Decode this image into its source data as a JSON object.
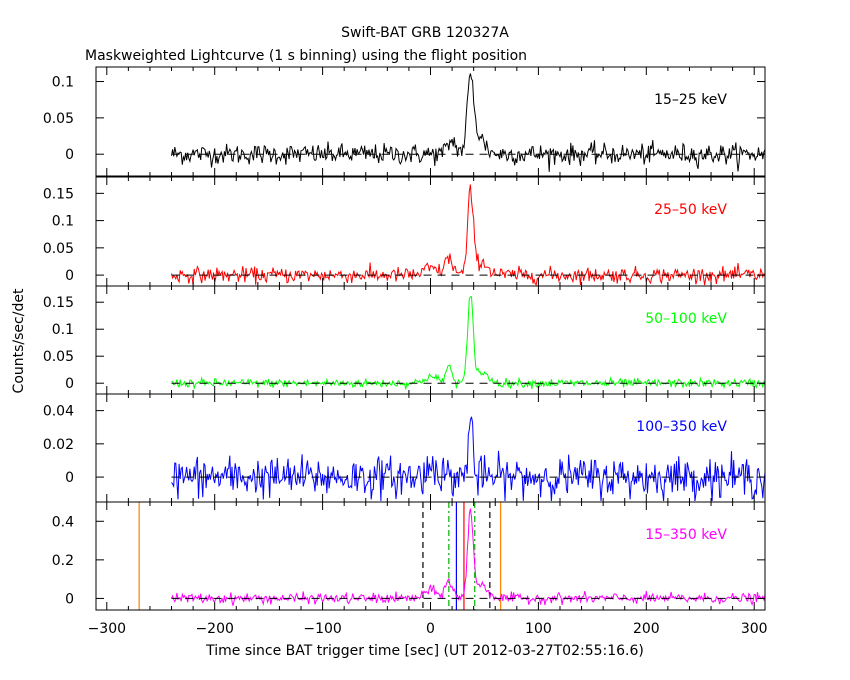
{
  "chart_data": {
    "type": "line",
    "title": "Swift-BAT GRB 120327A",
    "subtitle": "Maskweighted Lightcurve (1 s binning) using the flight position",
    "xlabel": "Time since BAT trigger time [sec] (UT 2012-03-27T02:55:16.6)",
    "ylabel": "Counts/sec/det",
    "xlim": [
      -310,
      310
    ],
    "x_ticks": [
      "−300",
      "−200",
      "−100",
      "0",
      "100",
      "200",
      "300"
    ],
    "x_tick_values": [
      -300,
      -200,
      -100,
      0,
      100,
      200,
      300
    ],
    "data_range": [
      -240,
      310
    ],
    "noise_seed": 12345,
    "panels": [
      {
        "label": "15–25 keV",
        "color": "#000000",
        "ylim": [
          -0.03,
          0.12
        ],
        "ticks": [
          0,
          0.05,
          0.1
        ],
        "tick_labels": [
          "0",
          "0.05",
          "0.1"
        ],
        "noise": 0.007,
        "peaks": [
          {
            "t": 37,
            "amp": 0.095,
            "w": 3
          },
          {
            "t": 20,
            "amp": 0.018,
            "w": 4
          },
          {
            "t": 44,
            "amp": 0.025,
            "w": 6
          }
        ]
      },
      {
        "label": "25–50 keV",
        "color": "#ff0000",
        "ylim": [
          -0.02,
          0.18
        ],
        "ticks": [
          0,
          0.05,
          0.1,
          0.15
        ],
        "tick_labels": [
          "0",
          "0.05",
          "0.1",
          "0.15"
        ],
        "noise": 0.007,
        "peaks": [
          {
            "t": 37,
            "amp": 0.145,
            "w": 2.5
          },
          {
            "t": 17,
            "amp": 0.03,
            "w": 4
          },
          {
            "t": 0,
            "amp": 0.012,
            "w": 6
          },
          {
            "t": 46,
            "amp": 0.025,
            "w": 7
          }
        ]
      },
      {
        "label": "50–100 keV",
        "color": "#00ff00",
        "ylim": [
          -0.02,
          0.18
        ],
        "ticks": [
          0,
          0.05,
          0.1,
          0.15
        ],
        "tick_labels": [
          "0",
          "0.05",
          "0.1",
          "0.15"
        ],
        "noise": 0.004,
        "peaks": [
          {
            "t": 37,
            "amp": 0.155,
            "w": 2.5
          },
          {
            "t": 17,
            "amp": 0.03,
            "w": 3
          },
          {
            "t": 0,
            "amp": 0.012,
            "w": 6
          },
          {
            "t": 46,
            "amp": 0.02,
            "w": 7
          }
        ]
      },
      {
        "label": "100–350 keV",
        "color": "#0000ff",
        "ylim": [
          -0.015,
          0.05
        ],
        "ticks": [
          0,
          0.02,
          0.04
        ],
        "tick_labels": [
          "0",
          "0.02",
          "0.04"
        ],
        "noise": 0.006,
        "peaks": [
          {
            "t": 37,
            "amp": 0.038,
            "w": 2
          },
          {
            "t": 3,
            "amp": 0.008,
            "w": 5
          }
        ]
      },
      {
        "label": "15–350 keV",
        "color": "#ff00ff",
        "ylim": [
          -0.06,
          0.5
        ],
        "ticks": [
          0,
          0.2,
          0.4
        ],
        "tick_labels": [
          "0",
          "0.2",
          "0.4"
        ],
        "noise": 0.013,
        "peaks": [
          {
            "t": 37,
            "amp": 0.43,
            "w": 2.5
          },
          {
            "t": 17,
            "amp": 0.09,
            "w": 3.5
          },
          {
            "t": 0,
            "amp": 0.04,
            "w": 6
          },
          {
            "t": 46,
            "amp": 0.07,
            "w": 7
          }
        ]
      }
    ],
    "markers": [
      {
        "t": -270,
        "color": "#ff7f00",
        "style": "solid"
      },
      {
        "t": 65,
        "color": "#ff7f00",
        "style": "solid"
      },
      {
        "t": -7,
        "color": "#000000",
        "style": "dashed"
      },
      {
        "t": 55,
        "color": "#000000",
        "style": "dashed"
      },
      {
        "t": 17,
        "color": "#00b000",
        "style": "dashdot"
      },
      {
        "t": 41,
        "color": "#00b000",
        "style": "dashdot"
      },
      {
        "t": 24,
        "color": "#0000ff",
        "style": "solid"
      },
      {
        "t": 31,
        "color": "#ff0000",
        "style": "solid"
      }
    ]
  }
}
